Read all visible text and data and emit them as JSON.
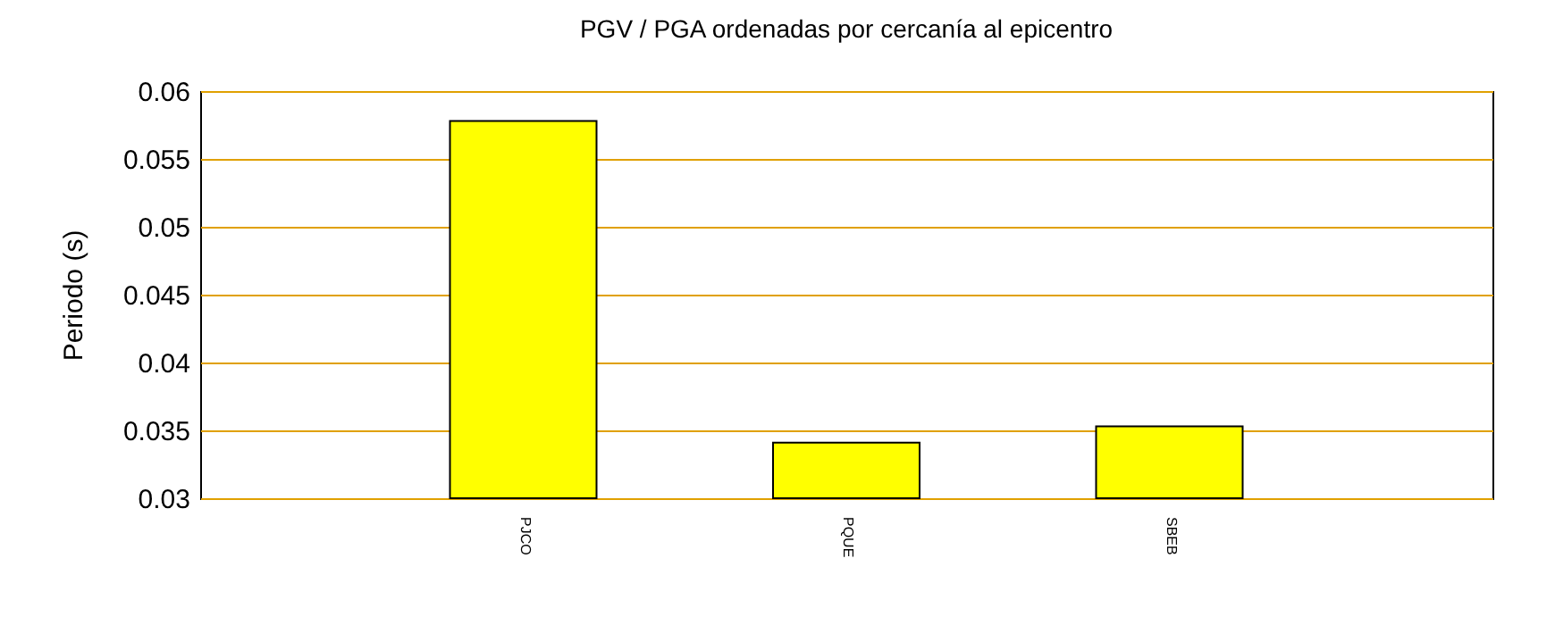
{
  "chart_data": {
    "type": "bar",
    "title": "PGV / PGA ordenadas por cercanía al epicentro",
    "ylabel": "Periodo (s)",
    "categories": [
      "PJCO",
      "PQUE",
      "SBEB"
    ],
    "series": [
      {
        "color": "#ffff00",
        "values": [
          0.0578,
          0.0341,
          0.0353
        ]
      }
    ],
    "ylim": [
      0.03,
      0.06
    ],
    "yticks": [
      0.03,
      0.035,
      0.04,
      0.045,
      0.05,
      0.055,
      0.06
    ],
    "grid": "y"
  }
}
